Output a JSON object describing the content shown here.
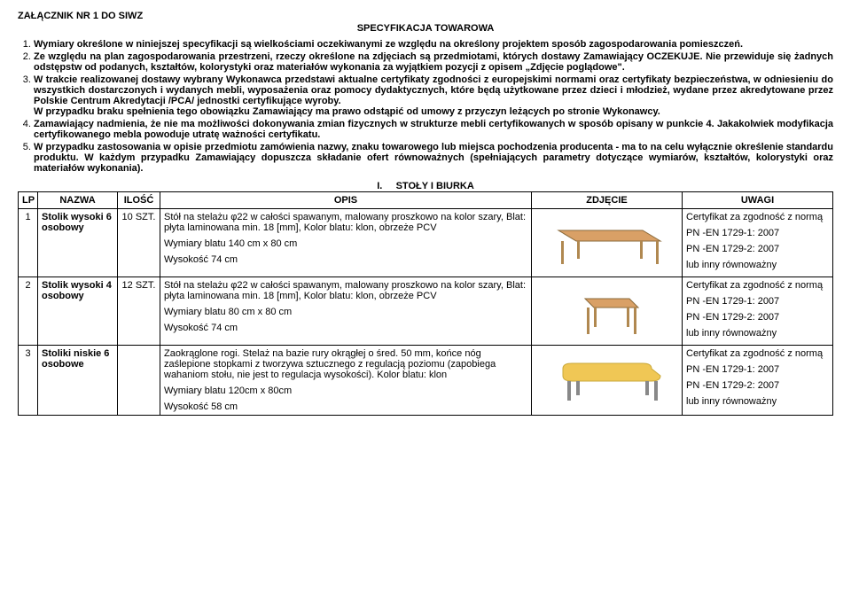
{
  "header": {
    "attachment": "ZAŁĄCZNIK NR 1 DO SIWZ",
    "specTitle": "SPECYFIKACJA TOWAROWA"
  },
  "intro": {
    "p1": "Wymiary określone w niniejszej specyfikacji są wielkościami oczekiwanymi ze względu na określony projektem sposób zagospodarowania pomieszczeń.",
    "p2a": "Ze względu na plan zagospodarowania przestrzeni, rzeczy określone na zdjęciach są przedmiotami, których dostawy Zamawiający OCZEKUJE.",
    "p2b": " Nie przewiduje się żadnych odstępstw od podanych, kształtów, kolorystyki oraz materiałów wykonania za wyjątkiem pozycji z opisem „Zdjęcie poglądowe\".",
    "p3a": "W trakcie realizowanej dostawy wybrany Wykonawca przedstawi aktualne certyfikaty zgodności z europejskimi normami oraz certyfikaty bezpieczeństwa, w odniesieniu do wszystkich dostarczonych i wydanych mebli, wyposażenia oraz pomocy dydaktycznych, które będą użytkowane przez dzieci i młodzież, wydane przez akredytowane przez Polskie Centrum Akredytacji /PCA/ jednostki certyfikujące wyroby.",
    "p3b": "W przypadku braku spełnienia tego obowiązku Zamawiający ma prawo odstąpić od umowy z przyczyn leżących po stronie Wykonawcy.",
    "p4": "Zamawiający nadmienia, że nie ma możliwości dokonywania zmian fizycznych w strukturze mebli certyfikowanych w sposób opisany w punkcie 4. Jakakolwiek modyfikacja certyfikowanego mebla powoduje utratę ważności certyfikatu.",
    "p5": "W przypadku zastosowania w opisie przedmiotu zamówienia nazwy, znaku towarowego lub miejsca pochodzenia producenta  - ma to na celu wyłącznie określenie standardu produktu. W każdym przypadku Zamawiający dopuszcza składanie ofert równoważnych (spełniających parametry dotyczące wymiarów, kształtów, kolorystyki oraz materiałów wykonania)."
  },
  "section": {
    "num": "I.",
    "title": "STOŁY I BIURKA"
  },
  "columns": {
    "lp": "LP",
    "name": "NAZWA",
    "qty": "ILOŚĆ",
    "desc": "OPIS",
    "img": "ZDJĘCIE",
    "notes": "UWAGI"
  },
  "rows": [
    {
      "lp": "1",
      "name": "Stolik wysoki 6 osobowy",
      "qty": "10 SZT.",
      "desc1": "Stół na stelażu φ22 w całości spawanym, malowany proszkowo na kolor szary, Blat: płyta laminowana min. 18 [mm], Kolor blatu: klon, obrzeże PCV",
      "desc2": "Wymiary blatu 140 cm x 80 cm",
      "desc3": "Wysokość 74 cm",
      "note1": "Certyfikat za  zgodność z normą",
      "note2": "PN -EN 1729-1: 2007",
      "note3": "PN -EN 1729-2: 2007",
      "note4": "lub inny równoważny",
      "topColor": "#d9a066",
      "legColor": "#b08850",
      "shape": "rect"
    },
    {
      "lp": "2",
      "name": "Stolik wysoki  4 osobowy",
      "qty": "12 SZT.",
      "desc1": "Stół na stelażu φ22 w całości spawanym, malowany proszkowo na kolor szary, Blat: płyta laminowana min. 18 [mm], Kolor blatu: klon, obrzeże PCV",
      "desc2": "Wymiary blatu 80 cm x 80 cm",
      "desc3": "Wysokość 74 cm",
      "note1": "Certyfikat za  zgodność z normą",
      "note2": "PN -EN 1729-1: 2007",
      "note3": "PN -EN 1729-2: 2007",
      "note4": "lub inny równoważny",
      "topColor": "#d9a066",
      "legColor": "#b08850",
      "shape": "square"
    },
    {
      "lp": "3",
      "name": "Stoliki niskie 6 osobowe",
      "qty": "",
      "desc1": "Zaokrąglone rogi. Stelaż na bazie rury okrągłej o śred. 50 mm, końce nóg zaślepione stopkami z tworzywa sztucznego z regulacją poziomu (zapobiega wahaniom stołu, nie jest to regulacja wysokości). Kolor blatu: klon",
      "desc2": "Wymiary blatu 120cm x 80cm",
      "desc3": "Wysokość 58 cm",
      "note1": "Certyfikat za  zgodność z normą",
      "note2": "PN -EN 1729-1: 2007",
      "note3": "PN -EN 1729-2: 2007",
      "note4": "lub inny równoważny",
      "topColor": "#f0c755",
      "legColor": "#888888",
      "shape": "rounded"
    }
  ]
}
